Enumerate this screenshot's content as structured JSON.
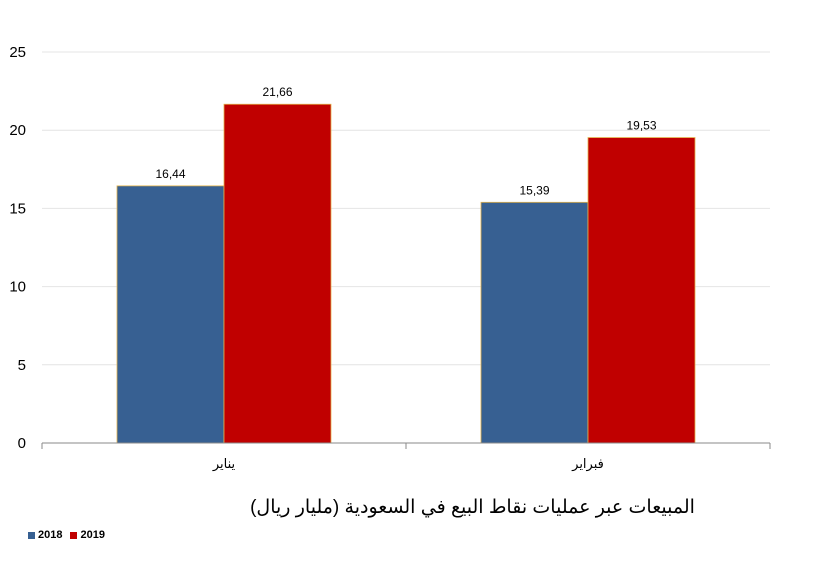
{
  "chart_data": {
    "type": "bar",
    "title": "المبيعات عبر عمليات نقاط البيع في السعودية (مليار ريال)",
    "categories": [
      "يناير",
      "فبراير"
    ],
    "series": [
      {
        "name": "2018",
        "values": [
          16.44,
          15.39
        ],
        "labels": [
          "16,44",
          "15,39"
        ],
        "color": "#376092"
      },
      {
        "name": "2019",
        "values": [
          21.66,
          19.53
        ],
        "labels": [
          "21,66",
          "19,53"
        ],
        "color": "#C00000"
      }
    ],
    "ylim": [
      0,
      25
    ],
    "yticks": [
      0,
      5,
      10,
      15,
      20,
      25
    ],
    "grid": true,
    "legend_position": "bottom-left"
  }
}
